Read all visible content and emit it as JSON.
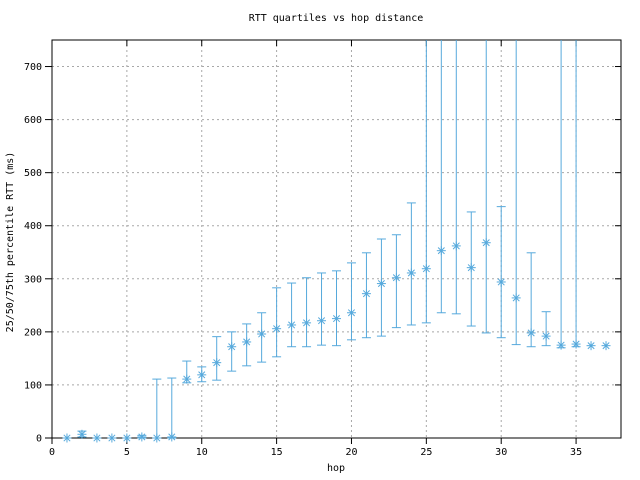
{
  "window": {
    "background": "#ffffff"
  },
  "chart_data": {
    "type": "scatter",
    "subtype": "yerrorbars",
    "title": "RTT quartiles vs hop distance",
    "xlabel": "hop",
    "ylabel": "25/50/75th percentile RTT (ms)",
    "xlim": [
      0,
      38
    ],
    "ylim": [
      0,
      750
    ],
    "xticks": [
      0,
      5,
      10,
      15,
      20,
      25,
      30,
      35
    ],
    "yticks": [
      0,
      100,
      200,
      300,
      400,
      500,
      600,
      700
    ],
    "grid": true,
    "legend": "none",
    "marker": "asterisk",
    "colors": {
      "series": "#56a9dc",
      "grid": "#a8a8a8",
      "border": "#000000",
      "text": "#000000",
      "background": "#ffffff"
    },
    "points": [
      {
        "hop": 1,
        "q25": 0,
        "median": 0,
        "q75": 0
      },
      {
        "hop": 2,
        "q25": 2,
        "median": 7,
        "q75": 13
      },
      {
        "hop": 3,
        "q25": 0,
        "median": 0,
        "q75": 0
      },
      {
        "hop": 4,
        "q25": 0,
        "median": 0,
        "q75": 0
      },
      {
        "hop": 5,
        "q25": 0,
        "median": 0,
        "q75": 0
      },
      {
        "hop": 6,
        "q25": 0,
        "median": 2,
        "q75": 5
      },
      {
        "hop": 7,
        "q25": 0,
        "median": 0,
        "q75": 111
      },
      {
        "hop": 8,
        "q25": 0,
        "median": 2,
        "q75": 113
      },
      {
        "hop": 9,
        "q25": 104,
        "median": 111,
        "q75": 145
      },
      {
        "hop": 10,
        "q25": 106,
        "median": 119,
        "q75": 134
      },
      {
        "hop": 11,
        "q25": 109,
        "median": 142,
        "q75": 191
      },
      {
        "hop": 12,
        "q25": 126,
        "median": 172,
        "q75": 200
      },
      {
        "hop": 13,
        "q25": 136,
        "median": 181,
        "q75": 215
      },
      {
        "hop": 14,
        "q25": 143,
        "median": 196,
        "q75": 236
      },
      {
        "hop": 15,
        "q25": 153,
        "median": 206,
        "q75": 283
      },
      {
        "hop": 16,
        "q25": 172,
        "median": 213,
        "q75": 292
      },
      {
        "hop": 17,
        "q25": 172,
        "median": 217,
        "q75": 302
      },
      {
        "hop": 18,
        "q25": 175,
        "median": 221,
        "q75": 311
      },
      {
        "hop": 19,
        "q25": 174,
        "median": 225,
        "q75": 315
      },
      {
        "hop": 20,
        "q25": 185,
        "median": 236,
        "q75": 330
      },
      {
        "hop": 21,
        "q25": 189,
        "median": 272,
        "q75": 349
      },
      {
        "hop": 22,
        "q25": 192,
        "median": 291,
        "q75": 375
      },
      {
        "hop": 23,
        "q25": 208,
        "median": 302,
        "q75": 383
      },
      {
        "hop": 24,
        "q25": 213,
        "median": 311,
        "q75": 443
      },
      {
        "hop": 25,
        "q25": 217,
        "median": 319,
        "q75": 750,
        "q75_clipped": true
      },
      {
        "hop": 26,
        "q25": 236,
        "median": 353,
        "q75": 750,
        "q75_clipped": true
      },
      {
        "hop": 27,
        "q25": 234,
        "median": 362,
        "q75": 750,
        "q75_clipped": true
      },
      {
        "hop": 28,
        "q25": 211,
        "median": 321,
        "q75": 426
      },
      {
        "hop": 29,
        "q25": 198,
        "median": 368,
        "q75": 750,
        "q75_clipped": true
      },
      {
        "hop": 30,
        "q25": 189,
        "median": 294,
        "q75": 436
      },
      {
        "hop": 31,
        "q25": 176,
        "median": 264,
        "q75": 750,
        "q75_clipped": true
      },
      {
        "hop": 32,
        "q25": 172,
        "median": 198,
        "q75": 349
      },
      {
        "hop": 33,
        "q25": 174,
        "median": 192,
        "q75": 238
      },
      {
        "hop": 34,
        "q25": 170,
        "median": 175,
        "q75": 750,
        "q75_clipped": true
      },
      {
        "hop": 35,
        "q25": 172,
        "median": 177,
        "q75": 750,
        "q75_clipped": true
      },
      {
        "hop": 36,
        "q25": 174,
        "median": 174,
        "q75": 174
      },
      {
        "hop": 37,
        "q25": 174,
        "median": 174,
        "q75": 174
      }
    ]
  }
}
